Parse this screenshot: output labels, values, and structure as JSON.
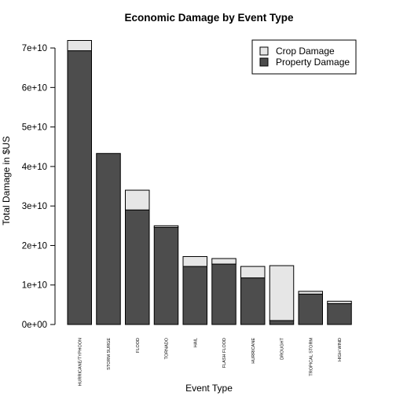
{
  "chart_data": {
    "type": "bar",
    "stacked": true,
    "title": "Economic Damage by Event Type",
    "xlabel": "Event Type",
    "ylabel": "Total Damage in $US",
    "ylim": [
      0,
      72000000000
    ],
    "yticks": [
      0,
      10000000000,
      20000000000,
      30000000000,
      40000000000,
      50000000000,
      60000000000,
      70000000000
    ],
    "ytick_labels": [
      "0e+00",
      "1e+10",
      "2e+10",
      "3e+10",
      "4e+10",
      "5e+10",
      "6e+10",
      "7e+10"
    ],
    "categories": [
      "HURRICANE/TYPHOON",
      "STORM SURGE",
      "FLOOD",
      "TORNADO",
      "HAIL",
      "FLASH FLOOD",
      "HURRICANE",
      "DROUGHT",
      "TROPICAL STORM",
      "HIGH WIND"
    ],
    "series": [
      {
        "name": "Property Damage",
        "color": "#4d4d4d",
        "values": [
          69300000000,
          43300000000,
          29000000000,
          24600000000,
          14700000000,
          15300000000,
          11800000000,
          1000000000,
          7700000000,
          5300000000
        ]
      },
      {
        "name": "Crop Damage",
        "color": "#e6e6e6",
        "values": [
          2600000000,
          0,
          5000000000,
          400000000,
          2500000000,
          1400000000,
          2900000000,
          13900000000,
          700000000,
          600000000
        ]
      }
    ],
    "legend": {
      "position": "top-right",
      "entries": [
        "Crop Damage",
        "Property Damage"
      ]
    },
    "grid": false
  }
}
